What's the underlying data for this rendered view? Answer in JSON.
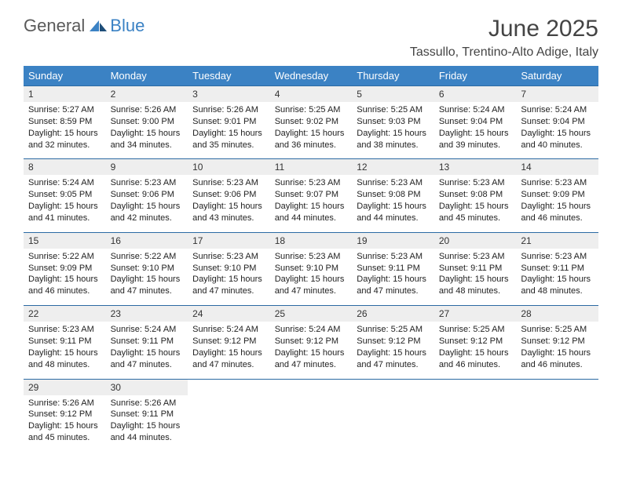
{
  "brand": {
    "part1": "General",
    "part2": "Blue"
  },
  "title": "June 2025",
  "location": "Tassullo, Trentino-Alto Adige, Italy",
  "colors": {
    "header_bg": "#3b82c4",
    "header_text": "#ffffff",
    "daynum_bg": "#eeeeee",
    "rule": "#2b6aa3",
    "page_bg": "#ffffff",
    "text": "#333333"
  },
  "day_headers": [
    "Sunday",
    "Monday",
    "Tuesday",
    "Wednesday",
    "Thursday",
    "Friday",
    "Saturday"
  ],
  "weeks": [
    [
      {
        "num": "1",
        "sunrise": "Sunrise: 5:27 AM",
        "sunset": "Sunset: 8:59 PM",
        "day1": "Daylight: 15 hours",
        "day2": "and 32 minutes."
      },
      {
        "num": "2",
        "sunrise": "Sunrise: 5:26 AM",
        "sunset": "Sunset: 9:00 PM",
        "day1": "Daylight: 15 hours",
        "day2": "and 34 minutes."
      },
      {
        "num": "3",
        "sunrise": "Sunrise: 5:26 AM",
        "sunset": "Sunset: 9:01 PM",
        "day1": "Daylight: 15 hours",
        "day2": "and 35 minutes."
      },
      {
        "num": "4",
        "sunrise": "Sunrise: 5:25 AM",
        "sunset": "Sunset: 9:02 PM",
        "day1": "Daylight: 15 hours",
        "day2": "and 36 minutes."
      },
      {
        "num": "5",
        "sunrise": "Sunrise: 5:25 AM",
        "sunset": "Sunset: 9:03 PM",
        "day1": "Daylight: 15 hours",
        "day2": "and 38 minutes."
      },
      {
        "num": "6",
        "sunrise": "Sunrise: 5:24 AM",
        "sunset": "Sunset: 9:04 PM",
        "day1": "Daylight: 15 hours",
        "day2": "and 39 minutes."
      },
      {
        "num": "7",
        "sunrise": "Sunrise: 5:24 AM",
        "sunset": "Sunset: 9:04 PM",
        "day1": "Daylight: 15 hours",
        "day2": "and 40 minutes."
      }
    ],
    [
      {
        "num": "8",
        "sunrise": "Sunrise: 5:24 AM",
        "sunset": "Sunset: 9:05 PM",
        "day1": "Daylight: 15 hours",
        "day2": "and 41 minutes."
      },
      {
        "num": "9",
        "sunrise": "Sunrise: 5:23 AM",
        "sunset": "Sunset: 9:06 PM",
        "day1": "Daylight: 15 hours",
        "day2": "and 42 minutes."
      },
      {
        "num": "10",
        "sunrise": "Sunrise: 5:23 AM",
        "sunset": "Sunset: 9:06 PM",
        "day1": "Daylight: 15 hours",
        "day2": "and 43 minutes."
      },
      {
        "num": "11",
        "sunrise": "Sunrise: 5:23 AM",
        "sunset": "Sunset: 9:07 PM",
        "day1": "Daylight: 15 hours",
        "day2": "and 44 minutes."
      },
      {
        "num": "12",
        "sunrise": "Sunrise: 5:23 AM",
        "sunset": "Sunset: 9:08 PM",
        "day1": "Daylight: 15 hours",
        "day2": "and 44 minutes."
      },
      {
        "num": "13",
        "sunrise": "Sunrise: 5:23 AM",
        "sunset": "Sunset: 9:08 PM",
        "day1": "Daylight: 15 hours",
        "day2": "and 45 minutes."
      },
      {
        "num": "14",
        "sunrise": "Sunrise: 5:23 AM",
        "sunset": "Sunset: 9:09 PM",
        "day1": "Daylight: 15 hours",
        "day2": "and 46 minutes."
      }
    ],
    [
      {
        "num": "15",
        "sunrise": "Sunrise: 5:22 AM",
        "sunset": "Sunset: 9:09 PM",
        "day1": "Daylight: 15 hours",
        "day2": "and 46 minutes."
      },
      {
        "num": "16",
        "sunrise": "Sunrise: 5:22 AM",
        "sunset": "Sunset: 9:10 PM",
        "day1": "Daylight: 15 hours",
        "day2": "and 47 minutes."
      },
      {
        "num": "17",
        "sunrise": "Sunrise: 5:23 AM",
        "sunset": "Sunset: 9:10 PM",
        "day1": "Daylight: 15 hours",
        "day2": "and 47 minutes."
      },
      {
        "num": "18",
        "sunrise": "Sunrise: 5:23 AM",
        "sunset": "Sunset: 9:10 PM",
        "day1": "Daylight: 15 hours",
        "day2": "and 47 minutes."
      },
      {
        "num": "19",
        "sunrise": "Sunrise: 5:23 AM",
        "sunset": "Sunset: 9:11 PM",
        "day1": "Daylight: 15 hours",
        "day2": "and 47 minutes."
      },
      {
        "num": "20",
        "sunrise": "Sunrise: 5:23 AM",
        "sunset": "Sunset: 9:11 PM",
        "day1": "Daylight: 15 hours",
        "day2": "and 48 minutes."
      },
      {
        "num": "21",
        "sunrise": "Sunrise: 5:23 AM",
        "sunset": "Sunset: 9:11 PM",
        "day1": "Daylight: 15 hours",
        "day2": "and 48 minutes."
      }
    ],
    [
      {
        "num": "22",
        "sunrise": "Sunrise: 5:23 AM",
        "sunset": "Sunset: 9:11 PM",
        "day1": "Daylight: 15 hours",
        "day2": "and 48 minutes."
      },
      {
        "num": "23",
        "sunrise": "Sunrise: 5:24 AM",
        "sunset": "Sunset: 9:11 PM",
        "day1": "Daylight: 15 hours",
        "day2": "and 47 minutes."
      },
      {
        "num": "24",
        "sunrise": "Sunrise: 5:24 AM",
        "sunset": "Sunset: 9:12 PM",
        "day1": "Daylight: 15 hours",
        "day2": "and 47 minutes."
      },
      {
        "num": "25",
        "sunrise": "Sunrise: 5:24 AM",
        "sunset": "Sunset: 9:12 PM",
        "day1": "Daylight: 15 hours",
        "day2": "and 47 minutes."
      },
      {
        "num": "26",
        "sunrise": "Sunrise: 5:25 AM",
        "sunset": "Sunset: 9:12 PM",
        "day1": "Daylight: 15 hours",
        "day2": "and 47 minutes."
      },
      {
        "num": "27",
        "sunrise": "Sunrise: 5:25 AM",
        "sunset": "Sunset: 9:12 PM",
        "day1": "Daylight: 15 hours",
        "day2": "and 46 minutes."
      },
      {
        "num": "28",
        "sunrise": "Sunrise: 5:25 AM",
        "sunset": "Sunset: 9:12 PM",
        "day1": "Daylight: 15 hours",
        "day2": "and 46 minutes."
      }
    ],
    [
      {
        "num": "29",
        "sunrise": "Sunrise: 5:26 AM",
        "sunset": "Sunset: 9:12 PM",
        "day1": "Daylight: 15 hours",
        "day2": "and 45 minutes."
      },
      {
        "num": "30",
        "sunrise": "Sunrise: 5:26 AM",
        "sunset": "Sunset: 9:11 PM",
        "day1": "Daylight: 15 hours",
        "day2": "and 44 minutes."
      },
      null,
      null,
      null,
      null,
      null
    ]
  ]
}
